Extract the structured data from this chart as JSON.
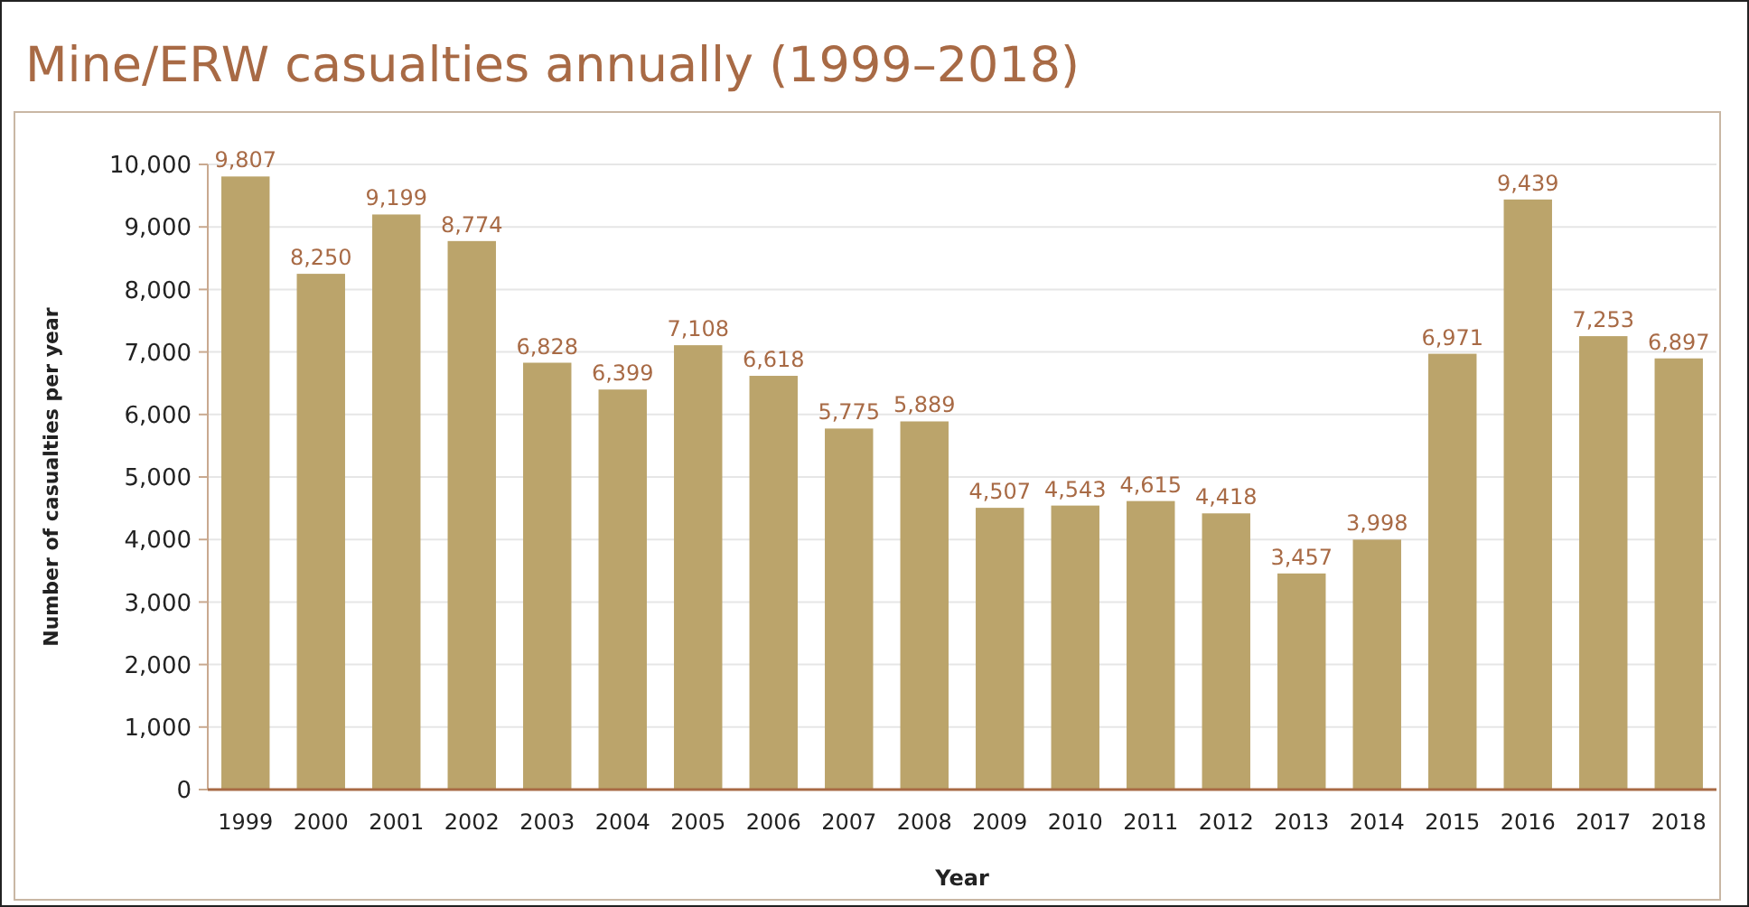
{
  "chart_data": {
    "type": "bar",
    "title": "Mine/ERW casualties annually (1999–2018)",
    "xlabel": "Year",
    "ylabel": "Number of casualties per year",
    "categories": [
      "1999",
      "2000",
      "2001",
      "2002",
      "2003",
      "2004",
      "2005",
      "2006",
      "2007",
      "2008",
      "2009",
      "2010",
      "2011",
      "2012",
      "2013",
      "2014",
      "2015",
      "2016",
      "2017",
      "2018"
    ],
    "values": [
      9807,
      8250,
      9199,
      8774,
      6828,
      6399,
      7108,
      6618,
      5775,
      5889,
      4507,
      4543,
      4615,
      4418,
      3457,
      3998,
      6971,
      9439,
      7253,
      6897
    ],
    "color": "#bba46b",
    "ylim": [
      0,
      10000
    ],
    "yticks": [
      {
        "value": 0,
        "label": "0"
      },
      {
        "value": 1000,
        "label": "1,000"
      },
      {
        "value": 2000,
        "label": "2,000"
      },
      {
        "value": 3000,
        "label": "3,000"
      },
      {
        "value": 4000,
        "label": "4,000"
      },
      {
        "value": 5000,
        "label": "5,000"
      },
      {
        "value": 6000,
        "label": "6,000"
      },
      {
        "value": 7000,
        "label": "7,000"
      },
      {
        "value": 8000,
        "label": "8,000"
      },
      {
        "value": 9000,
        "label": "9,000"
      },
      {
        "value": 10000,
        "label": "10,000"
      }
    ],
    "value_labels": [
      "9,807",
      "8,250",
      "9,199",
      "8,774",
      "6,828",
      "6,399",
      "7,108",
      "6,618",
      "5,775",
      "5,889",
      "4,507",
      "4,543",
      "4,615",
      "4,418",
      "3,457",
      "3,998",
      "6,971",
      "9,439",
      "7,253",
      "6,897"
    ],
    "grid": "y"
  }
}
